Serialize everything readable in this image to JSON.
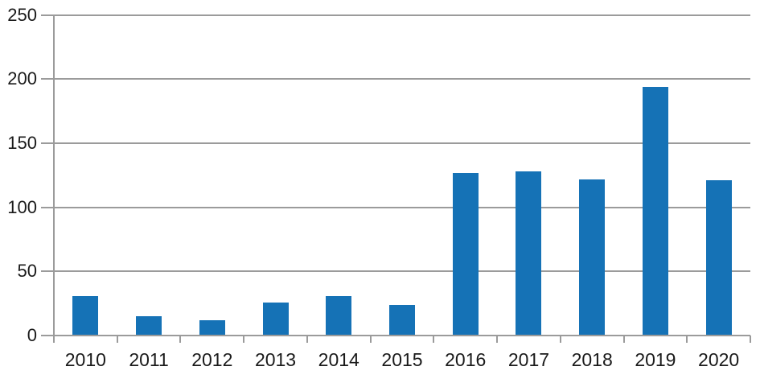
{
  "chart_data": {
    "type": "bar",
    "categories": [
      "2010",
      "2011",
      "2012",
      "2013",
      "2014",
      "2015",
      "2016",
      "2017",
      "2018",
      "2019",
      "2020"
    ],
    "values": [
      31,
      15,
      12,
      26,
      31,
      24,
      127,
      128,
      122,
      194,
      121
    ],
    "title": "",
    "xlabel": "",
    "ylabel": "",
    "ylim": [
      0,
      250
    ],
    "yticks": [
      0,
      50,
      100,
      150,
      200,
      250
    ],
    "ytick_labels": [
      "0",
      "50",
      "100",
      "150",
      "200",
      "250"
    ],
    "grid": true,
    "legend": false,
    "legend_position": "none",
    "bar_color": "#1572b6",
    "gridline_color": "#9b9b9b",
    "axis_color": "#9b9b9b",
    "label_color": "#1a1a1a"
  }
}
